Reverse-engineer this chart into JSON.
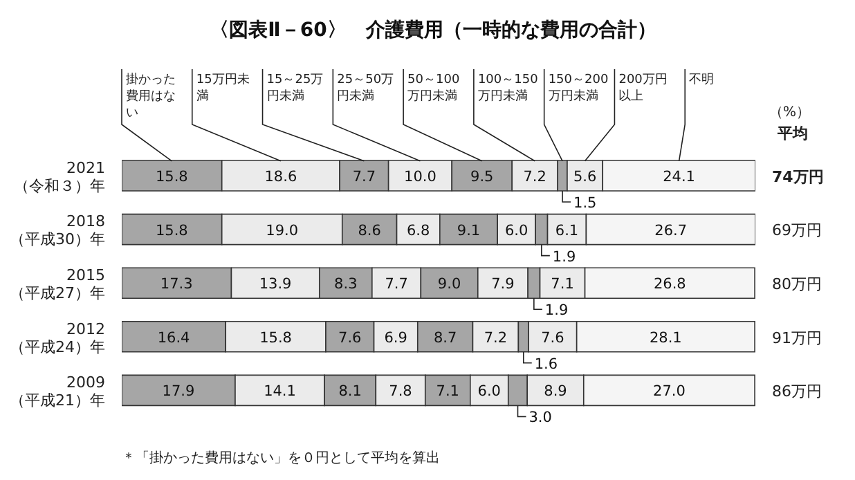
{
  "chart_data": {
    "type": "bar",
    "orientation": "horizontal",
    "stacked": true,
    "title": "〈図表Ⅱ－60〉　介護費用（一時的な費用の合計）",
    "categories": [
      "2021（令和３）年",
      "2018（平成30）年",
      "2015（平成27）年",
      "2012（平成24）年",
      "2009（平成21）年"
    ],
    "series": [
      {
        "name": "掛かった費用はない",
        "color": "#a6a6a6",
        "values": [
          15.8,
          15.8,
          17.3,
          16.4,
          17.9
        ],
        "value_labels": [
          "15.8",
          "15.8",
          "17.3",
          "16.4",
          "17.9"
        ]
      },
      {
        "name": "15万円未満",
        "color": "#ebebeb",
        "values": [
          18.6,
          19.0,
          13.9,
          15.8,
          14.1
        ],
        "value_labels": [
          "18.6",
          "19.0",
          "13.9",
          "15.8",
          "14.1"
        ]
      },
      {
        "name": "15～25万円未満",
        "color": "#a6a6a6",
        "values": [
          7.7,
          8.6,
          8.3,
          7.6,
          8.1
        ],
        "value_labels": [
          "7.7",
          "8.6",
          "8.3",
          "7.6",
          "8.1"
        ]
      },
      {
        "name": "25～50万円未満",
        "color": "#ebebeb",
        "values": [
          10.0,
          6.8,
          7.7,
          6.9,
          7.8
        ],
        "value_labels": [
          "10.0",
          "6.8",
          "7.7",
          "6.9",
          "7.8"
        ]
      },
      {
        "name": "50～100万円未満",
        "color": "#a6a6a6",
        "values": [
          9.5,
          9.1,
          9.0,
          8.7,
          7.1
        ],
        "value_labels": [
          "9.5",
          "9.1",
          "9.0",
          "8.7",
          "7.1"
        ]
      },
      {
        "name": "100～150万円未満",
        "color": "#ebebeb",
        "values": [
          7.2,
          6.0,
          7.9,
          7.2,
          6.0
        ],
        "value_labels": [
          "7.2",
          "6.0",
          "7.9",
          "7.2",
          "6.0"
        ]
      },
      {
        "name": "150～200万円未満",
        "color": "#a6a6a6",
        "values": [
          1.5,
          1.9,
          1.9,
          1.6,
          3.0
        ],
        "value_labels": [
          "1.5",
          "1.9",
          "1.9",
          "1.6",
          "3.0"
        ]
      },
      {
        "name": "200万円以上",
        "color": "#ebebeb",
        "values": [
          5.6,
          6.1,
          7.1,
          7.6,
          8.9
        ],
        "value_labels": [
          "5.6",
          "6.1",
          "7.1",
          "7.6",
          "8.9"
        ]
      },
      {
        "name": "不明",
        "color": "#f5f5f5",
        "values": [
          24.1,
          26.7,
          26.8,
          28.1,
          27.0
        ],
        "value_labels": [
          "24.1",
          "26.7",
          "26.8",
          "28.1",
          "27.0"
        ]
      }
    ],
    "xlim": [
      0,
      100
    ],
    "tick_labels": "y",
    "legend": "top",
    "annotations": [
      "（%）",
      "平均",
      "74万円",
      "69万円",
      "80万円",
      "91万円",
      "86万円",
      "＊「掛かった費用はない」を０円として平均を算出"
    ]
  }
}
